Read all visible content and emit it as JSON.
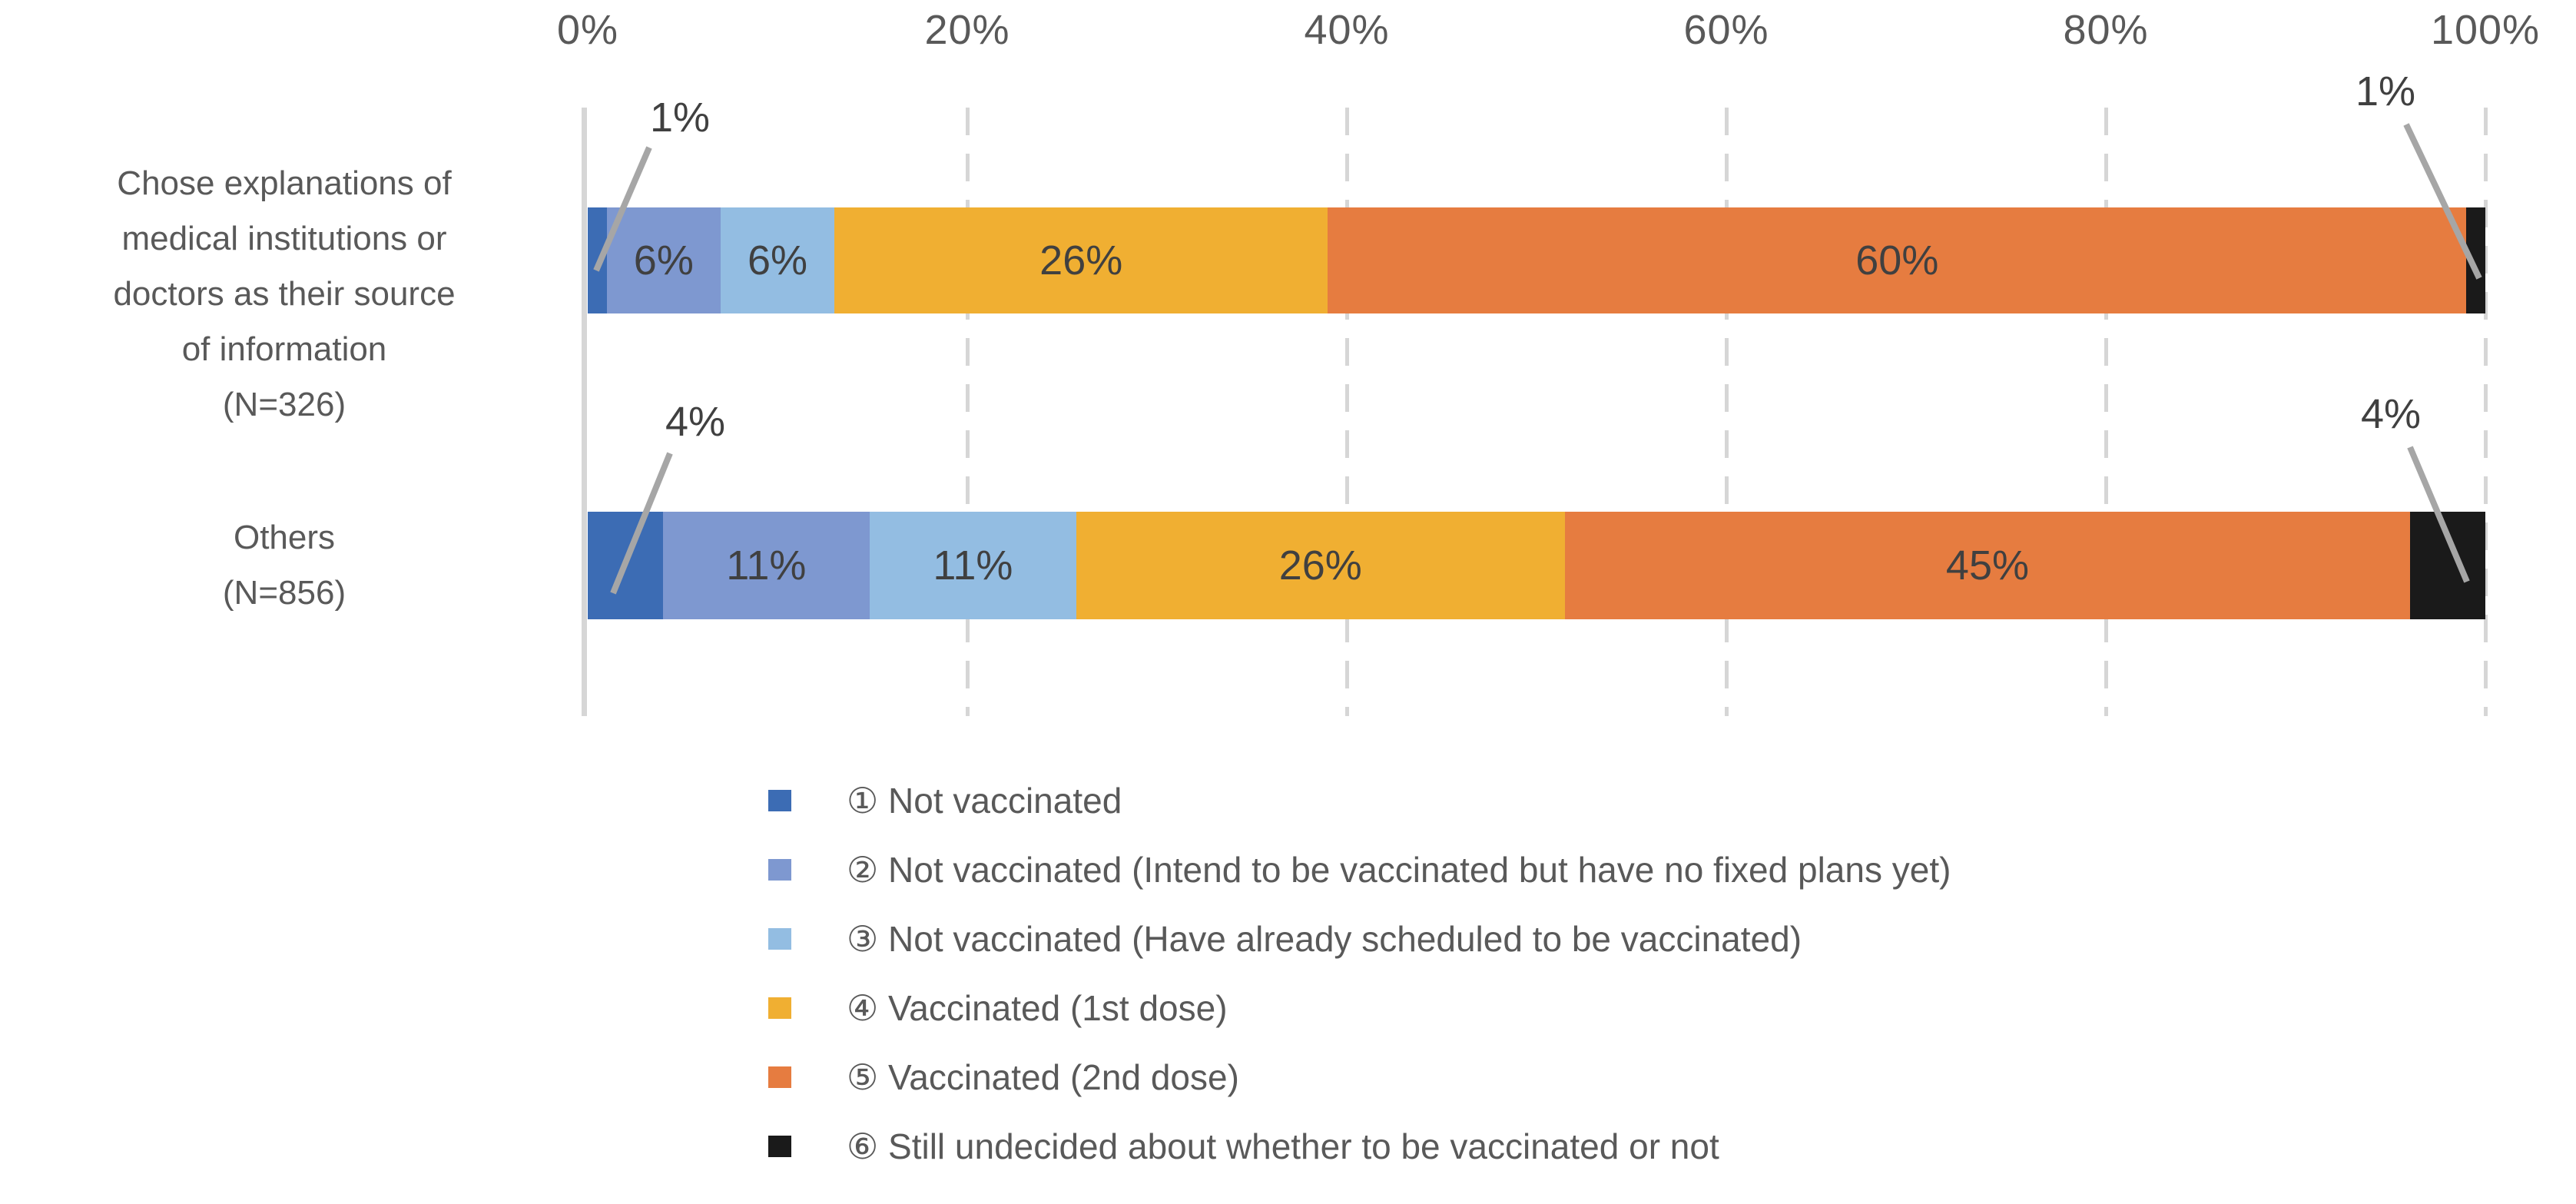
{
  "chart_data": {
    "type": "bar",
    "subtype": "stacked-horizontal",
    "title": "",
    "xlabel": "",
    "ylabel": "",
    "xlim": [
      0,
      100
    ],
    "grid": "vertical-dashed",
    "legend_position": "bottom",
    "categories": [
      "Chose explanations of medical institutions or doctors as their source of information (N=326)",
      "Others (N=856)"
    ],
    "category_label_lines": [
      [
        "Chose explanations of",
        "medical institutions or",
        "doctors as their source",
        "of information",
        "(N=326)"
      ],
      [
        "Others",
        "(N=856)"
      ]
    ],
    "x_ticks": [
      {
        "label": "0%",
        "value": 0
      },
      {
        "label": "20%",
        "value": 20
      },
      {
        "label": "40%",
        "value": 40
      },
      {
        "label": "60%",
        "value": 60
      },
      {
        "label": "80%",
        "value": 80
      },
      {
        "label": "100%",
        "value": 100
      }
    ],
    "series": [
      {
        "name": "① Not vaccinated",
        "color": "#3C6CB4",
        "values": [
          1,
          4
        ]
      },
      {
        "name": "② Not vaccinated (Intend to be vaccinated but have no fixed plans yet)",
        "color": "#7E98D0",
        "values": [
          6,
          11
        ]
      },
      {
        "name": "③ Not vaccinated (Have already scheduled to be vaccinated)",
        "color": "#93BDE2",
        "values": [
          6,
          11
        ]
      },
      {
        "name": "④ Vaccinated (1st dose)",
        "color": "#F0AF32",
        "values": [
          26,
          26
        ]
      },
      {
        "name": "⑤ Vaccinated (2nd dose)",
        "color": "#E67C40",
        "values": [
          60,
          45
        ]
      },
      {
        "name": "⑥ Still undecided about whether to be vaccinated or not",
        "color": "#1A1A1A",
        "values": [
          1,
          4
        ]
      }
    ],
    "data_labels": {
      "inline_format": "{value}%",
      "inline_min_value": 5,
      "callout_labels": [
        "1%",
        "1%",
        "4%",
        "4%"
      ]
    },
    "colors": {
      "tick_text": "#595959",
      "category_text": "#595959",
      "data_label_text": "#404040",
      "axis_line": "#D6D6D6",
      "gridline": "#D6D6D6",
      "leader_line": "#A6A6A6",
      "background": "#FFFFFF"
    }
  }
}
